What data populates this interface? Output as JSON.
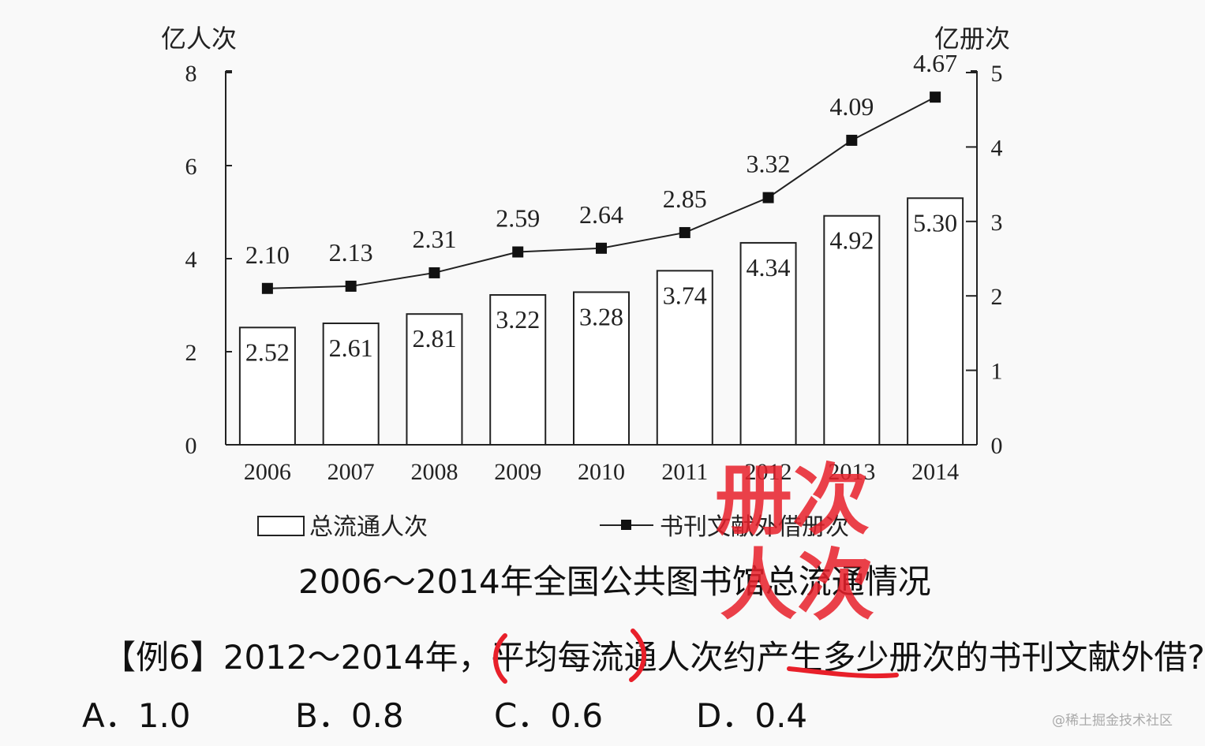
{
  "chart_data": {
    "type": "bar+line",
    "categories": [
      "2006",
      "2007",
      "2008",
      "2009",
      "2010",
      "2011",
      "2012",
      "2013",
      "2014"
    ],
    "series": [
      {
        "name": "总流通人次",
        "type": "bar",
        "axis": "left",
        "values": [
          2.52,
          2.61,
          2.81,
          3.22,
          3.28,
          3.74,
          4.34,
          4.92,
          5.3
        ],
        "labels": [
          "2.52",
          "2.61",
          "2.81",
          "3.22",
          "3.28",
          "3.74",
          "4.34",
          "4.92",
          "5.30"
        ]
      },
      {
        "name": "书刊文献外借册次",
        "type": "line",
        "axis": "right",
        "values": [
          2.1,
          2.13,
          2.31,
          2.59,
          2.64,
          2.85,
          3.32,
          4.09,
          4.67
        ],
        "labels": [
          "2.10",
          "2.13",
          "2.31",
          "2.59",
          "2.64",
          "2.85",
          "3.32",
          "4.09",
          "4.67"
        ]
      }
    ],
    "y_left": {
      "label": "亿人次",
      "ylim": [
        0,
        8
      ],
      "ticks": [
        0,
        2,
        4,
        6,
        8
      ]
    },
    "y_right": {
      "label": "亿册次",
      "ylim": [
        0,
        5
      ],
      "ticks": [
        0,
        1,
        2,
        3,
        4,
        5
      ]
    },
    "legend_placement": "bottom",
    "grid": false,
    "title": "2006～2014年全国公共图书馆总流通情况"
  },
  "question": {
    "text": "【例6】2012～2014年，平均每流通人次约产生多少册次的书刊文献外借?",
    "options": [
      {
        "letter": "A．",
        "value": "1.0"
      },
      {
        "letter": "B．",
        "value": "0.8"
      },
      {
        "letter": "C．",
        "value": "0.6"
      },
      {
        "letter": "D．",
        "value": "0.4"
      }
    ]
  },
  "annotations": {
    "color": "#e8202a",
    "words": [
      "册次",
      "人次"
    ]
  },
  "watermark": "@稀土掘金技术社区"
}
